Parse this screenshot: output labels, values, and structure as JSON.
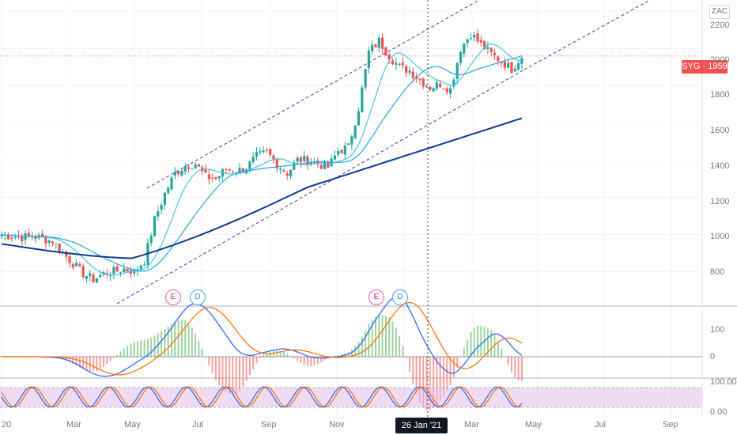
{
  "instrument": {
    "symbol": "SYG",
    "last_price": "1959",
    "price_label": "SYG · 1959",
    "currency": "ZAC"
  },
  "crosshair": {
    "date_label": "26 Jan '21"
  },
  "price_axis": {
    "ticks": [
      "2200",
      "2000",
      "1800",
      "1600",
      "1400",
      "1200",
      "1000",
      "800"
    ]
  },
  "macd_axis": {
    "ticks": [
      "100",
      "0"
    ]
  },
  "stoch_axis": {
    "ticks": [
      "100.00",
      "0.00"
    ]
  },
  "time_axis": {
    "labels": [
      "20",
      "Mar",
      "May",
      "Jul",
      "Sep",
      "Nov",
      "202",
      "Mar",
      "May",
      "Jul",
      "Sep"
    ]
  },
  "events": [
    {
      "label": "E",
      "kind": "earnings"
    },
    {
      "label": "D",
      "kind": "dividend"
    },
    {
      "label": "E",
      "kind": "earnings"
    },
    {
      "label": "D",
      "kind": "dividend"
    }
  ],
  "colors": {
    "up": "#26a69a",
    "down": "#ef5350",
    "ma_fast": "#4dc3e6",
    "ma_mid": "#26a6e0",
    "ma_slow": "#0d3c8c",
    "channel": "#3b3bd6",
    "stoch_band": "#e1bee7"
  },
  "chart_data": {
    "type": "candlestick",
    "price_range": [
      620,
      2260
    ],
    "series_close": [
      {
        "i": 0,
        "c": 1000
      },
      {
        "i": 3,
        "c": 990
      },
      {
        "i": 6,
        "c": 985
      },
      {
        "i": 9,
        "c": 992
      },
      {
        "i": 12,
        "c": 978
      },
      {
        "i": 15,
        "c": 965
      },
      {
        "i": 18,
        "c": 900
      },
      {
        "i": 21,
        "c": 845
      },
      {
        "i": 24,
        "c": 790
      },
      {
        "i": 27,
        "c": 760
      },
      {
        "i": 30,
        "c": 790
      },
      {
        "i": 33,
        "c": 800
      },
      {
        "i": 36,
        "c": 815
      },
      {
        "i": 39,
        "c": 800
      },
      {
        "i": 42,
        "c": 860
      },
      {
        "i": 45,
        "c": 1080
      },
      {
        "i": 48,
        "c": 1220
      },
      {
        "i": 51,
        "c": 1330
      },
      {
        "i": 54,
        "c": 1370
      },
      {
        "i": 57,
        "c": 1380
      },
      {
        "i": 60,
        "c": 1310
      },
      {
        "i": 63,
        "c": 1300
      },
      {
        "i": 66,
        "c": 1350
      },
      {
        "i": 69,
        "c": 1340
      },
      {
        "i": 72,
        "c": 1360
      },
      {
        "i": 75,
        "c": 1420
      },
      {
        "i": 78,
        "c": 1440
      },
      {
        "i": 81,
        "c": 1380
      },
      {
        "i": 84,
        "c": 1330
      },
      {
        "i": 87,
        "c": 1400
      },
      {
        "i": 90,
        "c": 1400
      },
      {
        "i": 93,
        "c": 1380
      },
      {
        "i": 96,
        "c": 1360
      },
      {
        "i": 99,
        "c": 1450
      },
      {
        "i": 102,
        "c": 1470
      },
      {
        "i": 105,
        "c": 1680
      },
      {
        "i": 108,
        "c": 1980
      },
      {
        "i": 111,
        "c": 2040
      },
      {
        "i": 114,
        "c": 1960
      },
      {
        "i": 117,
        "c": 1900
      },
      {
        "i": 120,
        "c": 1880
      },
      {
        "i": 123,
        "c": 1830
      },
      {
        "i": 126,
        "c": 1790
      },
      {
        "i": 129,
        "c": 1810
      },
      {
        "i": 132,
        "c": 1780
      },
      {
        "i": 135,
        "c": 2000
      },
      {
        "i": 138,
        "c": 2080
      },
      {
        "i": 141,
        "c": 2020
      },
      {
        "i": 144,
        "c": 1970
      },
      {
        "i": 147,
        "c": 1930
      },
      {
        "i": 150,
        "c": 1890
      },
      {
        "i": 153,
        "c": 1959
      }
    ]
  }
}
